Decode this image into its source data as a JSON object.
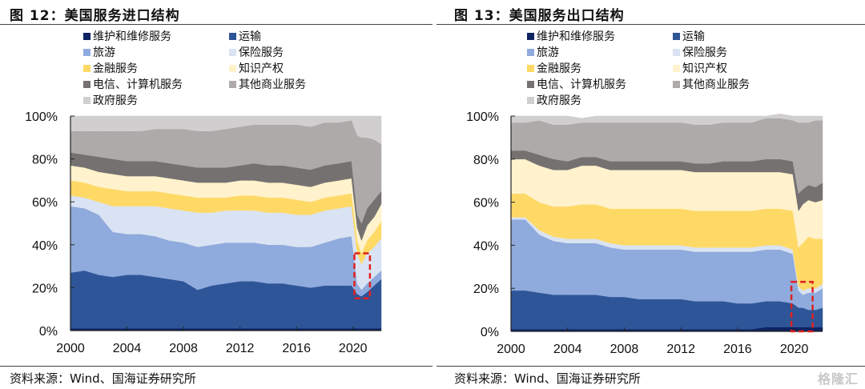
{
  "watermark": "格隆汇",
  "legend_series": [
    {
      "name": "维护和维修服务",
      "color": "#0e2362"
    },
    {
      "name": "运输",
      "color": "#2e5597"
    },
    {
      "name": "旅游",
      "color": "#8faadc"
    },
    {
      "name": "保险服务",
      "color": "#dae3f3"
    },
    {
      "name": "金融服务",
      "color": "#ffd966"
    },
    {
      "name": "知识产权",
      "color": "#fff2cc"
    },
    {
      "name": "电信、计算机服务",
      "color": "#767171"
    },
    {
      "name": "其他商业服务",
      "color": "#aeaaaa"
    },
    {
      "name": "政府服务",
      "color": "#d0cece"
    }
  ],
  "highlight_color": "#e02020",
  "chart_data": [
    {
      "type": "area",
      "stacked": "percent",
      "title": "图 12：美国服务进口结构",
      "source": "资料来源：Wind、国海证券研究所",
      "xlabel": "",
      "ylabel": "",
      "xlim": [
        2000,
        2022
      ],
      "ylim": [
        0,
        100
      ],
      "xticks": [
        "2000",
        "2004",
        "2008",
        "2012",
        "2016",
        "2020"
      ],
      "yticks": [
        "0%",
        "20%",
        "40%",
        "60%",
        "80%",
        "100%"
      ],
      "legend_position": "top",
      "annotation": "red dashed box around 2020-2021 low of 运输/旅游",
      "highlight_box": {
        "x0": 2020.1,
        "x1": 2021.2,
        "y0": 15,
        "y1": 36
      },
      "x": [
        2000,
        2001,
        2002,
        2003,
        2004,
        2005,
        2006,
        2007,
        2008,
        2009,
        2010,
        2011,
        2012,
        2013,
        2014,
        2015,
        2016,
        2017,
        2018,
        2019,
        2019.9,
        2020.3,
        2020.6,
        2021,
        2021.5,
        2022
      ],
      "series": [
        {
          "name": "维护和维修服务",
          "values": [
            1,
            1,
            1,
            1,
            1,
            1,
            1,
            1,
            1,
            1,
            1,
            1,
            1,
            1,
            1,
            1,
            1,
            1,
            1,
            1,
            1,
            1,
            1,
            1,
            1,
            1
          ]
        },
        {
          "name": "运输",
          "values": [
            26,
            27,
            25,
            24,
            25,
            25,
            24,
            23,
            22,
            18,
            20,
            21,
            22,
            22,
            21,
            21,
            20,
            19,
            20,
            20,
            20,
            16,
            15,
            17,
            20,
            23
          ]
        },
        {
          "name": "旅游",
          "values": [
            31,
            29,
            28,
            21,
            19,
            19,
            19,
            18,
            18,
            20,
            19,
            19,
            18,
            18,
            18,
            18,
            18,
            19,
            20,
            22,
            23,
            5,
            3,
            4,
            4,
            4
          ]
        },
        {
          "name": "保险服务",
          "values": [
            5,
            5,
            6,
            12,
            13,
            13,
            14,
            15,
            15,
            16,
            15,
            15,
            15,
            15,
            15,
            15,
            15,
            15,
            15,
            14,
            14,
            14,
            12,
            14,
            14,
            15
          ]
        },
        {
          "name": "金融服务",
          "values": [
            7,
            7,
            7,
            8,
            7,
            7,
            7,
            7,
            7,
            7,
            7,
            6,
            7,
            7,
            7,
            7,
            7,
            6,
            6,
            6,
            6,
            6,
            5,
            6,
            7,
            8
          ]
        },
        {
          "name": "知识产权",
          "values": [
            7,
            7,
            7,
            7,
            7,
            7,
            7,
            7,
            7,
            7,
            7,
            7,
            7,
            7,
            7,
            7,
            7,
            7,
            7,
            7,
            7,
            6,
            6,
            7,
            7,
            8
          ]
        },
        {
          "name": "电信、计算机服务",
          "values": [
            6,
            6,
            7,
            7,
            7,
            7,
            7,
            7,
            7,
            7,
            7,
            7,
            7,
            8,
            8,
            8,
            8,
            8,
            8,
            8,
            8,
            6,
            8,
            8,
            8,
            6
          ]
        },
        {
          "name": "其他商业服务",
          "values": [
            10,
            11,
            12,
            13,
            14,
            14,
            15,
            16,
            17,
            17,
            17,
            18,
            18,
            18,
            19,
            19,
            20,
            20,
            20,
            19,
            19,
            37,
            40,
            33,
            28,
            22
          ]
        },
        {
          "name": "政府服务",
          "values": [
            7,
            7,
            7,
            7,
            7,
            7,
            6,
            6,
            6,
            7,
            7,
            6,
            5,
            4,
            4,
            4,
            4,
            5,
            3,
            3,
            2,
            9,
            10,
            10,
            11,
            13
          ]
        }
      ]
    },
    {
      "type": "area",
      "stacked": "percent",
      "title": "图 13：美国服务出口结构",
      "source": "资料来源：Wind、国海证券研究所",
      "xlabel": "",
      "ylabel": "",
      "xlim": [
        2000,
        2022
      ],
      "ylim": [
        0,
        100
      ],
      "xticks": [
        "2000",
        "2004",
        "2008",
        "2012",
        "2016",
        "2020"
      ],
      "yticks": [
        "0%",
        "20%",
        "40%",
        "60%",
        "80%",
        "100%"
      ],
      "legend_position": "top",
      "annotation": "red dashed box around 2020-2021 low of 维护/运输/旅游",
      "highlight_box": {
        "x0": 2019.8,
        "x1": 2021.3,
        "y0": 0,
        "y1": 23
      },
      "x": [
        2000,
        2001,
        2002,
        2003,
        2004,
        2005,
        2006,
        2007,
        2008,
        2009,
        2010,
        2011,
        2012,
        2013,
        2014,
        2015,
        2016,
        2017,
        2018,
        2019,
        2019.9,
        2020.3,
        2020.6,
        2021,
        2021.5,
        2022
      ],
      "series": [
        {
          "name": "维护和维修服务",
          "values": [
            1,
            1,
            1,
            1,
            1,
            1,
            1,
            1,
            1,
            1,
            1,
            1,
            1,
            1,
            1,
            1,
            1,
            1,
            2,
            2,
            2,
            2,
            2,
            2,
            2,
            2
          ]
        },
        {
          "name": "运输",
          "values": [
            18,
            18,
            17,
            16,
            16,
            16,
            16,
            15,
            15,
            14,
            14,
            14,
            14,
            13,
            13,
            13,
            12,
            12,
            12,
            12,
            11,
            9,
            9,
            8,
            8,
            9
          ]
        },
        {
          "name": "旅游",
          "values": [
            33,
            33,
            27,
            25,
            24,
            24,
            24,
            23,
            22,
            23,
            23,
            23,
            23,
            23,
            23,
            23,
            24,
            24,
            24,
            24,
            23,
            8,
            6,
            8,
            8,
            9
          ]
        },
        {
          "name": "保险服务",
          "values": [
            1,
            1,
            2,
            2,
            2,
            2,
            2,
            2,
            2,
            2,
            2,
            2,
            2,
            2,
            2,
            2,
            2,
            2,
            2,
            2,
            2,
            2,
            2,
            2,
            2,
            2
          ]
        },
        {
          "name": "金融服务",
          "values": [
            11,
            11,
            13,
            14,
            15,
            16,
            16,
            16,
            17,
            17,
            17,
            17,
            17,
            17,
            17,
            17,
            17,
            17,
            17,
            17,
            18,
            18,
            22,
            24,
            23,
            21
          ]
        },
        {
          "name": "知识产权",
          "values": [
            16,
            16,
            17,
            17,
            17,
            18,
            18,
            18,
            18,
            18,
            18,
            18,
            18,
            18,
            18,
            18,
            18,
            18,
            17,
            17,
            17,
            17,
            18,
            17,
            17,
            18
          ]
        },
        {
          "name": "电信、计算机服务",
          "values": [
            4,
            4,
            5,
            5,
            4,
            4,
            4,
            4,
            4,
            4,
            4,
            4,
            4,
            4,
            4,
            5,
            5,
            5,
            6,
            6,
            6,
            8,
            7,
            7,
            7,
            8
          ]
        },
        {
          "name": "其他商业服务",
          "values": [
            13,
            13,
            16,
            16,
            17,
            16,
            16,
            18,
            18,
            18,
            18,
            18,
            18,
            18,
            18,
            18,
            18,
            18,
            19,
            19,
            19,
            33,
            31,
            29,
            31,
            29
          ]
        },
        {
          "name": "政府服务",
          "values": [
            3,
            3,
            2,
            4,
            4,
            2,
            3,
            3,
            3,
            3,
            3,
            3,
            3,
            4,
            4,
            3,
            3,
            3,
            1,
            2,
            2,
            3,
            3,
            3,
            2,
            2
          ]
        }
      ]
    }
  ]
}
